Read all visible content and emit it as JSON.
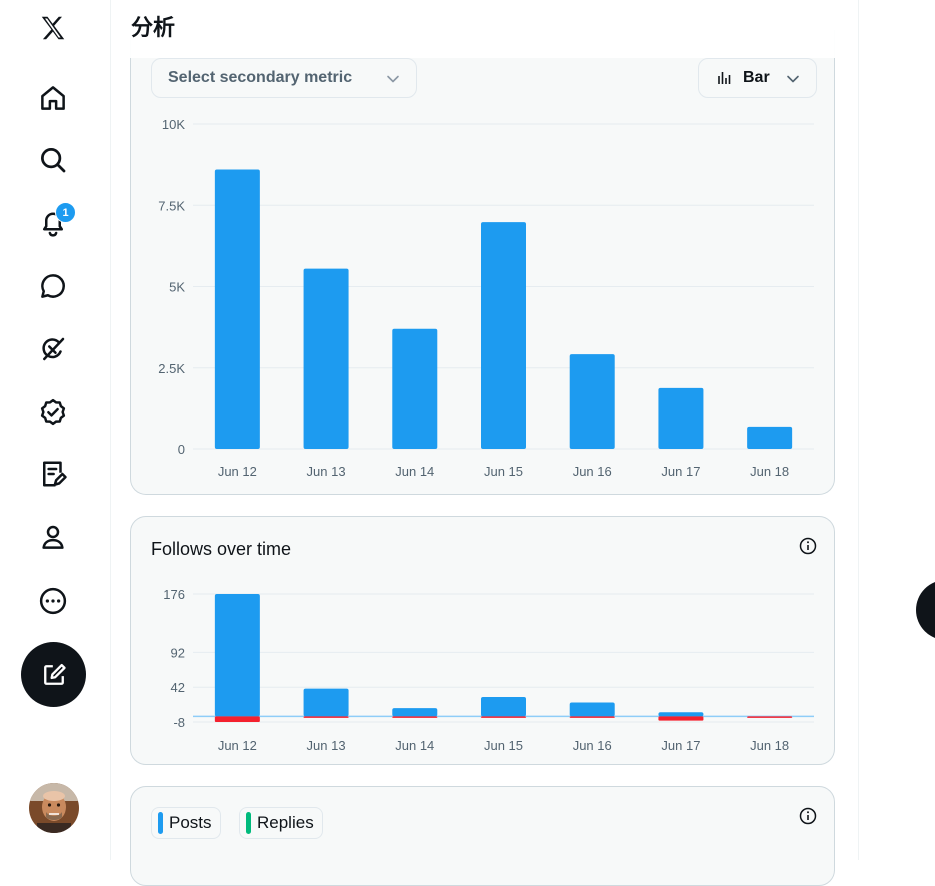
{
  "nav": {
    "items": [
      {
        "name": "x-logo-icon",
        "top": 4
      },
      {
        "name": "home-icon",
        "top": 73
      },
      {
        "name": "search-icon",
        "top": 134
      },
      {
        "name": "notifications-icon",
        "top": 197
      },
      {
        "name": "messages-icon",
        "top": 261
      },
      {
        "name": "grok-icon",
        "top": 323
      },
      {
        "name": "verified-icon",
        "top": 386
      },
      {
        "name": "articles-icon",
        "top": 448
      },
      {
        "name": "profile-icon",
        "top": 512
      },
      {
        "name": "more-icon",
        "top": 575
      }
    ],
    "notification_count": "1"
  },
  "header": {
    "title": "分析"
  },
  "impressions_card": {
    "secondary_metric_placeholder": "Select secondary metric",
    "chart_type_label": "Bar"
  },
  "follows_card": {
    "title": "Follows over time"
  },
  "posts_card": {
    "legend": [
      {
        "label": "Posts",
        "color": "#1d9bf0"
      },
      {
        "label": "Replies",
        "color": "#00ba7c"
      }
    ]
  },
  "colors": {
    "accent": "#1d9bf0",
    "negative": "#f4212e",
    "text": "#0f1419",
    "muted": "#536471"
  },
  "chart_data": [
    {
      "type": "bar",
      "categories": [
        "Jun 12",
        "Jun 13",
        "Jun 14",
        "Jun 15",
        "Jun 16",
        "Jun 17",
        "Jun 18"
      ],
      "values": [
        8600,
        5550,
        3700,
        6980,
        2920,
        1880,
        680
      ],
      "yticks": [
        0,
        2500,
        5000,
        7500,
        10000
      ],
      "ytick_labels": [
        "0",
        "2.5K",
        "5K",
        "7.5K",
        "10K"
      ],
      "ylim": [
        0,
        10000
      ],
      "grid": true
    },
    {
      "type": "bar",
      "title": "Follows over time",
      "categories": [
        "Jun 12",
        "Jun 13",
        "Jun 14",
        "Jun 15",
        "Jun 16",
        "Jun 17",
        "Jun 18"
      ],
      "series": [
        {
          "values": [
            176,
            40,
            12,
            28,
            20,
            6,
            0
          ]
        },
        {
          "values": [
            -8,
            -2,
            -1,
            -1,
            -2,
            -6,
            -1
          ]
        }
      ],
      "yticks": [
        -8,
        42,
        92,
        176
      ],
      "ytick_labels": [
        "-8",
        "42",
        "92",
        "176"
      ],
      "ylim": [
        -8,
        176
      ],
      "grid": true
    }
  ]
}
